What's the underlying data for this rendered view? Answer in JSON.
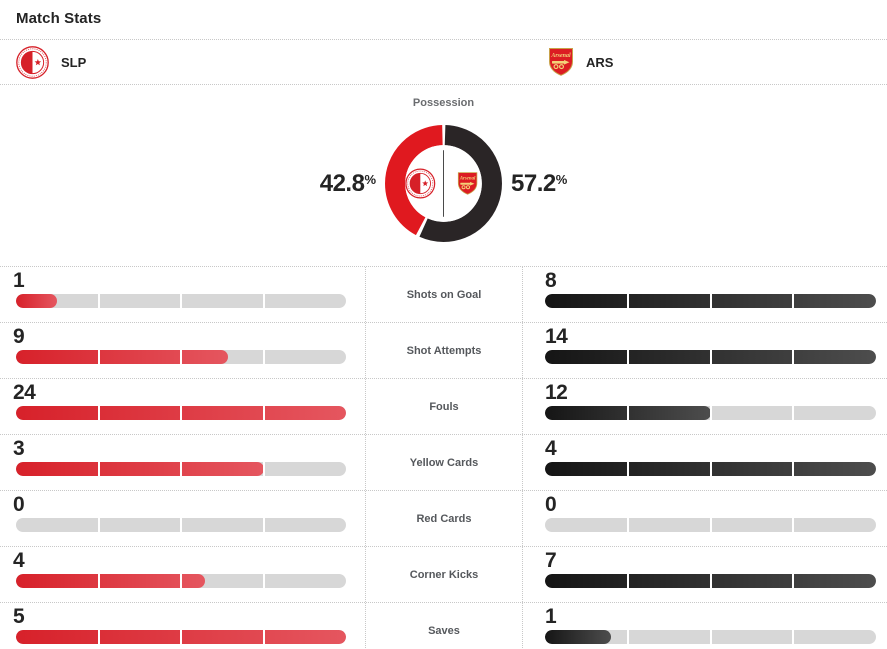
{
  "title": "Match Stats",
  "teams": {
    "home": {
      "abbr": "SLP"
    },
    "away": {
      "abbr": "ARS"
    }
  },
  "possession": {
    "label": "Possession",
    "home": "42.8",
    "away": "57.2",
    "unit": "%"
  },
  "chart_data": [
    {
      "type": "pie",
      "variant": "donut",
      "title": "Possession",
      "labels": [
        "SLP",
        "ARS"
      ],
      "values": [
        42.8,
        57.2
      ],
      "unit": "%",
      "colors": [
        "#e0191f",
        "#2a2526"
      ],
      "legend_position": "sides",
      "center_content": "team crests with vertical divider"
    },
    {
      "type": "bar",
      "title": "Match Stats",
      "orientation": "horizontal-paired",
      "categories": [
        "Shots on Goal",
        "Shot Attempts",
        "Fouls",
        "Yellow Cards",
        "Red Cards",
        "Corner Kicks",
        "Saves"
      ],
      "series": [
        {
          "name": "SLP",
          "values": [
            1,
            9,
            24,
            3,
            0,
            4,
            5
          ],
          "color": "#d7212a"
        },
        {
          "name": "ARS",
          "values": [
            8,
            14,
            12,
            4,
            0,
            7,
            1
          ],
          "color": "#151515"
        }
      ],
      "scaling": "each row scaled to max of the pair",
      "grid": false
    }
  ],
  "colors": {
    "bar_red_start": "#d7212a",
    "bar_red_end": "#e5565f",
    "bar_dark_start": "#151515",
    "bar_dark_end": "#4d4d4d",
    "bar_track": "#d7d7d7",
    "donut_red": "#e0191f",
    "donut_dark": "#2a2526",
    "text_dark": "#242424",
    "label_gray": "#55585c",
    "title_gray": "#6a6c6f",
    "dotted": "#c8c8c8"
  }
}
